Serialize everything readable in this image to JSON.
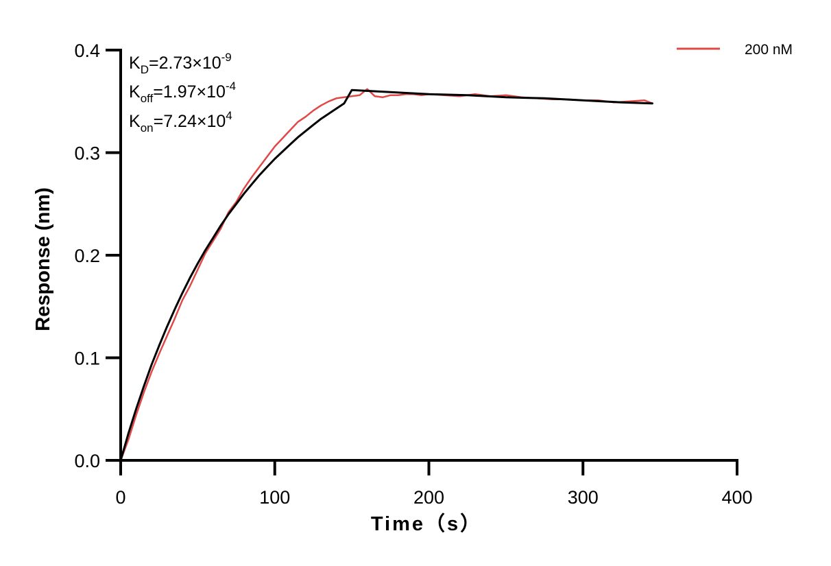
{
  "chart_data": {
    "type": "line",
    "xlabel": "Time（s）",
    "ylabel": "Response (nm)",
    "xlim": [
      0,
      400
    ],
    "ylim": [
      0,
      0.4
    ],
    "x_ticks": [
      0,
      100,
      200,
      300,
      400
    ],
    "x_tick_labels": [
      "0",
      "100",
      "200",
      "300",
      "400"
    ],
    "y_ticks": [
      0.0,
      0.1,
      0.2,
      0.3,
      0.4
    ],
    "y_tick_labels": [
      "0.0",
      "0.1",
      "0.2",
      "0.3",
      "0.4"
    ],
    "grid": false,
    "legend_position": "top-right",
    "annotations": [
      {
        "base": "K",
        "sub": "D",
        "rest": "=2.73×10",
        "sup": "-9"
      },
      {
        "base": "K",
        "sub": "off",
        "rest": "=1.97×10",
        "sup": "-4"
      },
      {
        "base": "K",
        "sub": "on",
        "rest": "=7.24×10",
        "sup": "4"
      }
    ],
    "series": [
      {
        "name": "200 nM",
        "color": "#e04848",
        "role": "measured",
        "x": [
          0,
          5,
          10,
          15,
          20,
          25,
          30,
          35,
          40,
          45,
          50,
          55,
          60,
          65,
          70,
          75,
          80,
          85,
          90,
          95,
          100,
          105,
          110,
          115,
          120,
          125,
          130,
          135,
          140,
          145,
          150,
          155,
          160,
          165,
          170,
          175,
          180,
          185,
          190,
          195,
          200,
          210,
          220,
          230,
          240,
          250,
          260,
          270,
          280,
          290,
          300,
          310,
          320,
          330,
          340,
          345
        ],
        "y": [
          0.0,
          0.02,
          0.044,
          0.066,
          0.086,
          0.104,
          0.121,
          0.138,
          0.156,
          0.17,
          0.186,
          0.202,
          0.214,
          0.226,
          0.242,
          0.252,
          0.265,
          0.276,
          0.286,
          0.296,
          0.306,
          0.314,
          0.322,
          0.33,
          0.335,
          0.341,
          0.346,
          0.35,
          0.353,
          0.354,
          0.355,
          0.356,
          0.362,
          0.355,
          0.354,
          0.356,
          0.356,
          0.357,
          0.357,
          0.356,
          0.357,
          0.356,
          0.355,
          0.357,
          0.355,
          0.356,
          0.354,
          0.353,
          0.352,
          0.352,
          0.351,
          0.351,
          0.349,
          0.35,
          0.351,
          0.348
        ]
      },
      {
        "name": "",
        "color": "#000000",
        "role": "fit",
        "x": [
          0,
          5,
          10,
          15,
          20,
          25,
          30,
          35,
          40,
          45,
          50,
          55,
          60,
          65,
          70,
          75,
          80,
          85,
          90,
          95,
          100,
          105,
          110,
          115,
          120,
          125,
          130,
          135,
          140,
          145,
          150,
          175,
          200,
          225,
          250,
          275,
          300,
          325,
          345
        ],
        "y": [
          0.0,
          0.026,
          0.05,
          0.072,
          0.093,
          0.112,
          0.13,
          0.147,
          0.163,
          0.178,
          0.192,
          0.205,
          0.217,
          0.229,
          0.24,
          0.25,
          0.26,
          0.269,
          0.278,
          0.286,
          0.294,
          0.301,
          0.308,
          0.315,
          0.321,
          0.327,
          0.333,
          0.338,
          0.343,
          0.348,
          0.361,
          0.359,
          0.357,
          0.356,
          0.354,
          0.353,
          0.351,
          0.349,
          0.348
        ]
      }
    ]
  }
}
